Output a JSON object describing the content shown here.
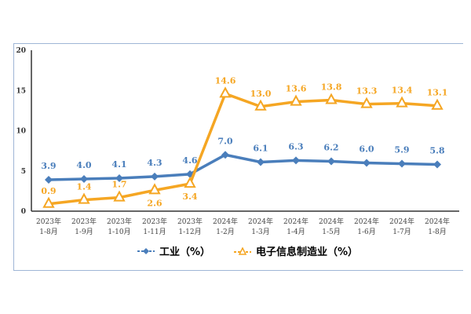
{
  "chart_data": {
    "type": "line",
    "categories": [
      "2023年\n1-8月",
      "2023年\n1-9月",
      "2023年\n1-10月",
      "2023年\n1-11月",
      "2023年\n1-12月",
      "2024年\n1-2月",
      "2024年\n1-3月",
      "2024年\n1-4月",
      "2024年\n1-5月",
      "2024年\n1-6月",
      "2024年\n1-7月",
      "2024年\n1-8月"
    ],
    "series": [
      {
        "name": "工业（%）",
        "color": "#4a7ebb",
        "marker": "diamond",
        "values": [
          3.9,
          4.0,
          4.1,
          4.3,
          4.6,
          7.0,
          6.1,
          6.3,
          6.2,
          6.0,
          5.9,
          5.8
        ]
      },
      {
        "name": "电子信息制造业（%）",
        "color": "#f5a623",
        "marker": "triangle",
        "values": [
          0.9,
          1.4,
          1.7,
          2.6,
          3.4,
          14.6,
          13.0,
          13.6,
          13.8,
          13.3,
          13.4,
          13.1
        ]
      }
    ],
    "ylim": [
      0,
      20
    ],
    "yticks": [
      0,
      5,
      10,
      15,
      20
    ],
    "grid": false,
    "legend": "bottom"
  }
}
